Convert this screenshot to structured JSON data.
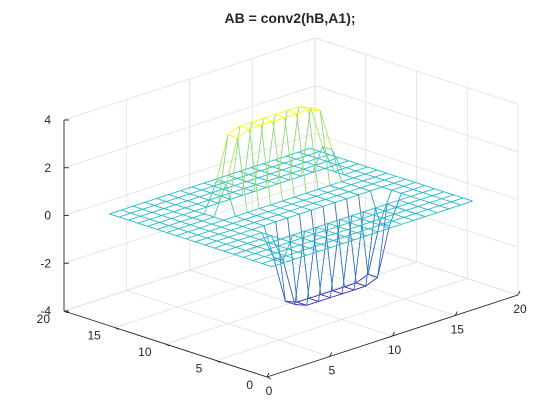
{
  "chart_data": {
    "type": "mesh3d",
    "title": "AB  = conv2(hB,A1);",
    "xlabel": "",
    "ylabel": "",
    "zlabel": "",
    "xlim": [
      0,
      20
    ],
    "ylim": [
      0,
      20
    ],
    "zlim": [
      -4,
      4
    ],
    "x_ticks": [
      "0",
      "5",
      "10",
      "15",
      "20"
    ],
    "y_ticks": [
      "0",
      "5",
      "10",
      "15",
      "20"
    ],
    "z_ticks": [
      "-4",
      "-2",
      "0",
      "2",
      "4"
    ],
    "grid": true,
    "view": {
      "azimuth": -37.5,
      "elevation": 30
    },
    "colormap": "parula",
    "colors": {
      "low": "#3e26a8",
      "mid": "#1fb8d0",
      "high": "#f9fb15",
      "grid": "#dcdcdc",
      "axis": "#262626"
    },
    "grid_size": [
      18,
      18
    ],
    "mesh_x_range": [
      2,
      18
    ],
    "mesh_y_range": [
      2,
      18
    ],
    "z_rows": [
      [
        0,
        0,
        0,
        0,
        0,
        0,
        0,
        0,
        0,
        0,
        0,
        0,
        0,
        0,
        0,
        0,
        0,
        0
      ],
      [
        0,
        0,
        0,
        0,
        0,
        0,
        0,
        0,
        0,
        0,
        0,
        0,
        0,
        0,
        0,
        0,
        0,
        0
      ],
      [
        0,
        0,
        0,
        0,
        0,
        0,
        0,
        0,
        0,
        0,
        0,
        0,
        0,
        0,
        0,
        0,
        0,
        0
      ],
      [
        0,
        0,
        0,
        0,
        0,
        0,
        0,
        0,
        0,
        0,
        0,
        0,
        0,
        0,
        0,
        0,
        0,
        0
      ],
      [
        0,
        0,
        0,
        0,
        0,
        0,
        0,
        0,
        0,
        0,
        0,
        0,
        0,
        0,
        0,
        0,
        0,
        0
      ],
      [
        0,
        0,
        0,
        0,
        0,
        -1.2,
        -3.2,
        -3.4,
        -3.4,
        -3.4,
        -3.4,
        -3.4,
        -3.4,
        -3.2,
        -1.2,
        0,
        0,
        0
      ],
      [
        0,
        0,
        0,
        0,
        0,
        -1.2,
        -3.2,
        -3.4,
        -3.4,
        -3.4,
        -3.4,
        -3.4,
        -3.4,
        -3.2,
        -1.2,
        0,
        0,
        0
      ],
      [
        0,
        0,
        0,
        0,
        0,
        0,
        0,
        0,
        0,
        0,
        0,
        0,
        0,
        0,
        0,
        0,
        0,
        0
      ],
      [
        0,
        0,
        0,
        0,
        0,
        0,
        0,
        0,
        0,
        0,
        0,
        0,
        0,
        0,
        0,
        0,
        0,
        0
      ],
      [
        0,
        0,
        0,
        0,
        0,
        0,
        0,
        0,
        0,
        0,
        0,
        0,
        0,
        0,
        0,
        0,
        0,
        0
      ],
      [
        0,
        0,
        0,
        0,
        0,
        0,
        0,
        0,
        0,
        0,
        0,
        0,
        0,
        0,
        0,
        0,
        0,
        0
      ],
      [
        0,
        0,
        0,
        0,
        0,
        1.2,
        3.0,
        3.2,
        3.2,
        3.2,
        3.2,
        3.2,
        3.2,
        3.0,
        1.2,
        0,
        0,
        0
      ],
      [
        0,
        0,
        0,
        0,
        0,
        1.2,
        3.0,
        3.2,
        3.2,
        3.2,
        3.2,
        3.2,
        3.2,
        3.0,
        1.2,
        0,
        0,
        0
      ],
      [
        0,
        0,
        0,
        0,
        0,
        0,
        0,
        0,
        0,
        0,
        0,
        0,
        0,
        0,
        0,
        0,
        0,
        0
      ],
      [
        0,
        0,
        0,
        0,
        0,
        0,
        0,
        0,
        0,
        0,
        0,
        0,
        0,
        0,
        0,
        0,
        0,
        0
      ],
      [
        0,
        0,
        0,
        0,
        0,
        0,
        0,
        0,
        0,
        0,
        0,
        0,
        0,
        0,
        0,
        0,
        0,
        0
      ],
      [
        0,
        0,
        0,
        0,
        0,
        0,
        0,
        0,
        0,
        0,
        0,
        0,
        0,
        0,
        0,
        0,
        0,
        0
      ],
      [
        0,
        0,
        0,
        0,
        0,
        0,
        0,
        0,
        0,
        0,
        0,
        0,
        0,
        0,
        0,
        0,
        0,
        0
      ]
    ]
  }
}
